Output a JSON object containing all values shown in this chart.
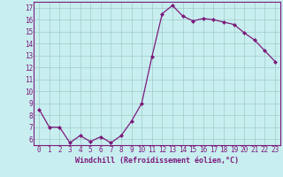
{
  "x_data": [
    0,
    1,
    2,
    3,
    4,
    5,
    6,
    7,
    8,
    9,
    10,
    11,
    12,
    13,
    14,
    15,
    16,
    17,
    18,
    19,
    20,
    21,
    22,
    23
  ],
  "y_data": [
    8.5,
    7.0,
    7.0,
    5.7,
    6.3,
    5.8,
    6.2,
    5.7,
    6.3,
    7.5,
    9.0,
    12.9,
    16.5,
    17.2,
    16.3,
    15.9,
    16.1,
    16.0,
    15.8,
    15.6,
    14.9,
    14.3,
    13.4,
    12.5
  ],
  "line_color": "#7B1A7B",
  "bg_color": "#c8eef0",
  "grid_color": "#a0ccc8",
  "xlabel": "Windchill (Refroidissement éolien,°C)",
  "xlim": [
    -0.5,
    23.5
  ],
  "ylim": [
    5.5,
    17.5
  ],
  "yticks": [
    6,
    7,
    8,
    9,
    10,
    11,
    12,
    13,
    14,
    15,
    16,
    17
  ],
  "xticks": [
    0,
    1,
    2,
    3,
    4,
    5,
    6,
    7,
    8,
    9,
    10,
    11,
    12,
    13,
    14,
    15,
    16,
    17,
    18,
    19,
    20,
    21,
    22,
    23
  ],
  "tick_fontsize": 5.5,
  "xlabel_fontsize": 6.0
}
